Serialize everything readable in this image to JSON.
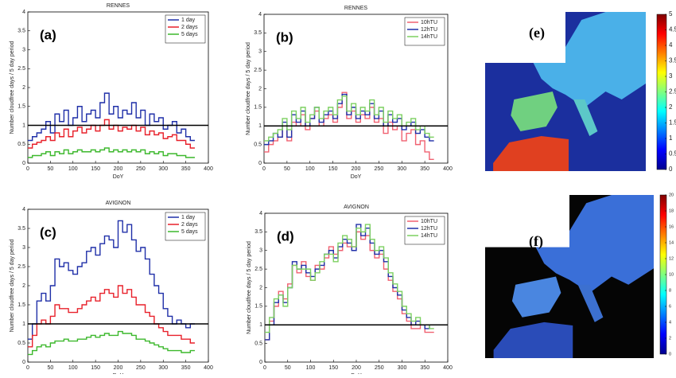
{
  "chart_data": [
    {
      "type": "step",
      "title": "RENNES",
      "panel_label": "(a)",
      "xlabel": "DoY",
      "ylabel": "Number cloudfree days / 5 day period",
      "x": [
        0,
        10,
        20,
        30,
        40,
        50,
        60,
        70,
        80,
        90,
        100,
        110,
        120,
        130,
        140,
        150,
        160,
        170,
        180,
        190,
        200,
        210,
        220,
        230,
        240,
        250,
        260,
        270,
        280,
        290,
        300,
        310,
        320,
        330,
        340,
        350,
        360
      ],
      "series": [
        {
          "name": "1 day",
          "color": "#1f2fa8",
          "values": [
            0.6,
            0.7,
            0.8,
            0.9,
            1.1,
            0.8,
            1.3,
            1.1,
            1.4,
            1.0,
            1.2,
            1.5,
            1.1,
            1.3,
            1.4,
            1.2,
            1.6,
            1.85,
            1.3,
            1.5,
            1.2,
            1.4,
            1.3,
            1.6,
            1.2,
            1.4,
            1.0,
            1.3,
            1.1,
            1.2,
            0.9,
            1.0,
            1.1,
            0.8,
            0.9,
            0.7,
            0.6
          ]
        },
        {
          "name": "2 days",
          "color": "#e8202a",
          "values": [
            0.4,
            0.5,
            0.55,
            0.6,
            0.7,
            0.6,
            0.8,
            0.7,
            0.9,
            0.7,
            0.85,
            0.95,
            0.8,
            0.9,
            1.0,
            0.85,
            1.0,
            1.15,
            0.9,
            1.0,
            0.85,
            0.95,
            0.9,
            1.0,
            0.85,
            0.95,
            0.75,
            0.85,
            0.75,
            0.8,
            0.65,
            0.7,
            0.75,
            0.6,
            0.6,
            0.5,
            0.4
          ]
        },
        {
          "name": "5 days",
          "color": "#3cb82c",
          "values": [
            0.15,
            0.2,
            0.2,
            0.25,
            0.3,
            0.2,
            0.3,
            0.25,
            0.35,
            0.25,
            0.3,
            0.35,
            0.3,
            0.3,
            0.35,
            0.3,
            0.35,
            0.4,
            0.3,
            0.35,
            0.3,
            0.35,
            0.3,
            0.35,
            0.3,
            0.35,
            0.25,
            0.3,
            0.25,
            0.3,
            0.2,
            0.25,
            0.25,
            0.2,
            0.2,
            0.15,
            0.15
          ]
        }
      ],
      "hline": 1,
      "xlim": [
        0,
        400
      ],
      "ylim": [
        0,
        4
      ],
      "xticks": [
        0,
        50,
        100,
        150,
        200,
        250,
        300,
        350,
        400
      ],
      "yticks": [
        0,
        0.5,
        1,
        1.5,
        2,
        2.5,
        3,
        3.5,
        4
      ],
      "legend": "upper right"
    },
    {
      "type": "step",
      "title": "RENNES",
      "panel_label": "(b)",
      "xlabel": "DoY",
      "ylabel": "Number cloudfree days / 5 day period",
      "x": [
        0,
        10,
        20,
        30,
        40,
        50,
        60,
        70,
        80,
        90,
        100,
        110,
        120,
        130,
        140,
        150,
        160,
        170,
        180,
        190,
        200,
        210,
        220,
        230,
        240,
        250,
        260,
        270,
        280,
        290,
        300,
        310,
        320,
        330,
        340,
        350,
        360
      ],
      "series": [
        {
          "name": "10hTU",
          "color": "#f06070",
          "values": [
            0.3,
            0.5,
            0.6,
            0.7,
            1.0,
            0.6,
            1.1,
            1.0,
            1.3,
            0.9,
            1.2,
            1.4,
            1.0,
            1.2,
            1.3,
            1.1,
            1.5,
            1.9,
            1.2,
            1.4,
            1.1,
            1.3,
            1.2,
            1.5,
            1.1,
            1.2,
            0.8,
            1.1,
            0.9,
            1.0,
            0.6,
            0.8,
            0.9,
            0.5,
            0.6,
            0.3,
            0.1
          ]
        },
        {
          "name": "12hTU",
          "color": "#1f2fa8",
          "values": [
            0.5,
            0.6,
            0.8,
            0.7,
            1.1,
            0.7,
            1.3,
            1.1,
            1.4,
            1.0,
            1.2,
            1.5,
            1.1,
            1.3,
            1.4,
            1.2,
            1.6,
            1.85,
            1.3,
            1.5,
            1.2,
            1.4,
            1.3,
            1.6,
            1.2,
            1.4,
            1.0,
            1.3,
            1.1,
            1.2,
            0.9,
            1.0,
            1.1,
            0.8,
            0.9,
            0.7,
            0.6
          ]
        },
        {
          "name": "14hTU",
          "color": "#7cd060",
          "values": [
            0.6,
            0.7,
            0.8,
            0.9,
            1.2,
            0.9,
            1.4,
            1.2,
            1.5,
            1.1,
            1.3,
            1.5,
            1.2,
            1.4,
            1.5,
            1.3,
            1.7,
            1.8,
            1.4,
            1.6,
            1.3,
            1.5,
            1.4,
            1.7,
            1.3,
            1.5,
            1.1,
            1.4,
            1.2,
            1.3,
            1.0,
            1.1,
            1.2,
            0.9,
            1.0,
            0.8,
            0.7
          ]
        }
      ],
      "hline": 1,
      "xlim": [
        0,
        400
      ],
      "ylim": [
        0,
        4
      ],
      "xticks": [
        0,
        50,
        100,
        150,
        200,
        250,
        300,
        350,
        400
      ],
      "yticks": [
        0,
        0.5,
        1,
        1.5,
        2,
        2.5,
        3,
        3.5,
        4
      ],
      "legend": "upper right"
    },
    {
      "type": "step",
      "title": "AVIGNON",
      "panel_label": "(c)",
      "xlabel": "DoY",
      "ylabel": "Number cloudfree days / 5 day period",
      "x": [
        0,
        10,
        20,
        30,
        40,
        50,
        60,
        70,
        80,
        90,
        100,
        110,
        120,
        130,
        140,
        150,
        160,
        170,
        180,
        190,
        200,
        210,
        220,
        230,
        240,
        250,
        260,
        270,
        280,
        290,
        300,
        310,
        320,
        330,
        340,
        350,
        360
      ],
      "series": [
        {
          "name": "1 day",
          "color": "#1f2fa8",
          "values": [
            0.6,
            1.0,
            1.6,
            1.8,
            1.6,
            2.0,
            2.7,
            2.5,
            2.6,
            2.4,
            2.3,
            2.5,
            2.6,
            2.9,
            3.0,
            2.8,
            3.1,
            3.3,
            3.2,
            3.0,
            3.7,
            3.4,
            3.6,
            3.2,
            2.9,
            3.0,
            2.7,
            2.3,
            2.0,
            1.8,
            1.4,
            1.2,
            1.0,
            1.1,
            1.0,
            0.9,
            1.0
          ]
        },
        {
          "name": "2 days",
          "color": "#e8202a",
          "values": [
            0.4,
            0.7,
            1.0,
            1.1,
            1.0,
            1.2,
            1.5,
            1.4,
            1.4,
            1.3,
            1.3,
            1.4,
            1.5,
            1.6,
            1.7,
            1.6,
            1.8,
            1.9,
            1.8,
            1.7,
            2.0,
            1.8,
            1.9,
            1.7,
            1.5,
            1.5,
            1.3,
            1.2,
            1.0,
            0.9,
            0.8,
            0.7,
            0.7,
            0.7,
            0.6,
            0.6,
            0.5
          ]
        },
        {
          "name": "5 days",
          "color": "#3cb82c",
          "values": [
            0.2,
            0.3,
            0.4,
            0.45,
            0.4,
            0.5,
            0.55,
            0.55,
            0.6,
            0.55,
            0.55,
            0.6,
            0.6,
            0.65,
            0.7,
            0.65,
            0.7,
            0.75,
            0.7,
            0.7,
            0.8,
            0.75,
            0.75,
            0.7,
            0.6,
            0.6,
            0.55,
            0.5,
            0.45,
            0.4,
            0.35,
            0.3,
            0.3,
            0.3,
            0.25,
            0.25,
            0.3
          ]
        }
      ],
      "hline": 1,
      "xlim": [
        0,
        400
      ],
      "ylim": [
        0,
        4
      ],
      "xticks": [
        0,
        50,
        100,
        150,
        200,
        250,
        300,
        350,
        400
      ],
      "yticks": [
        0,
        0.5,
        1,
        1.5,
        2,
        2.5,
        3,
        3.5,
        4
      ],
      "legend": "upper right"
    },
    {
      "type": "step",
      "title": "AVIGNON",
      "panel_label": "(d)",
      "xlabel": "DoY",
      "ylabel": "Number cloudfree days / 5 day period",
      "x": [
        0,
        10,
        20,
        30,
        40,
        50,
        60,
        70,
        80,
        90,
        100,
        110,
        120,
        130,
        140,
        150,
        160,
        170,
        180,
        190,
        200,
        210,
        220,
        230,
        240,
        250,
        260,
        270,
        280,
        290,
        300,
        310,
        320,
        330,
        340,
        350,
        360
      ],
      "series": [
        {
          "name": "10hTU",
          "color": "#f06070",
          "values": [
            0.6,
            1.1,
            1.5,
            1.9,
            1.7,
            2.1,
            2.6,
            2.4,
            2.7,
            2.3,
            2.2,
            2.6,
            2.5,
            2.8,
            3.1,
            2.9,
            3.0,
            3.2,
            3.1,
            3.1,
            3.5,
            3.3,
            3.4,
            3.0,
            2.8,
            2.9,
            2.5,
            2.2,
            1.9,
            1.7,
            1.3,
            1.1,
            0.9,
            0.9,
            1.0,
            0.8,
            0.8
          ]
        },
        {
          "name": "12hTU",
          "color": "#1f2fa8",
          "values": [
            0.6,
            1.0,
            1.6,
            1.8,
            1.6,
            2.0,
            2.7,
            2.5,
            2.6,
            2.4,
            2.3,
            2.5,
            2.6,
            2.9,
            3.0,
            2.8,
            3.1,
            3.3,
            3.2,
            3.0,
            3.7,
            3.4,
            3.6,
            3.2,
            2.9,
            3.0,
            2.7,
            2.3,
            2.0,
            1.8,
            1.4,
            1.2,
            1.0,
            1.1,
            1.0,
            0.9,
            1.0
          ]
        },
        {
          "name": "14hTU",
          "color": "#7cd060",
          "values": [
            0.8,
            1.2,
            1.7,
            1.8,
            1.5,
            2.0,
            2.6,
            2.5,
            2.5,
            2.5,
            2.2,
            2.4,
            2.7,
            2.9,
            2.9,
            2.7,
            3.2,
            3.4,
            3.3,
            3.1,
            3.6,
            3.5,
            3.7,
            3.3,
            3.0,
            3.1,
            2.8,
            2.4,
            2.1,
            1.9,
            1.5,
            1.3,
            1.1,
            1.2,
            1.0,
            1.0,
            0.9
          ]
        }
      ],
      "hline": 1,
      "xlim": [
        0,
        400
      ],
      "ylim": [
        0,
        4
      ],
      "xticks": [
        0,
        50,
        100,
        150,
        200,
        250,
        300,
        350,
        400
      ],
      "yticks": [
        0,
        0.5,
        1,
        1.5,
        2,
        2.5,
        3,
        3.5,
        4
      ],
      "legend": "upper right"
    },
    {
      "type": "map",
      "panel_label": "(e)",
      "background": "#1b2f9e",
      "colorbar_lim": [
        0,
        5
      ],
      "colorbar_ticks": [
        0,
        0.5,
        1,
        1.5,
        2,
        2.5,
        3,
        3.5,
        4,
        4.5,
        5
      ]
    },
    {
      "type": "map",
      "panel_label": "(f)",
      "background": "#050505",
      "colorbar_lim": [
        0,
        20
      ],
      "colorbar_ticks": [
        0,
        2,
        4,
        6,
        8,
        10,
        12,
        14,
        16,
        18,
        20
      ]
    }
  ]
}
